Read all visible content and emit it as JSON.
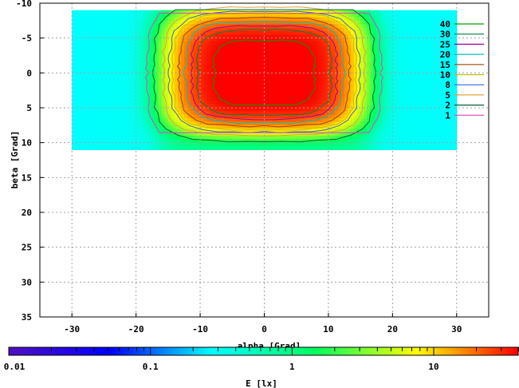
{
  "chart_data": {
    "type": "heatmap",
    "xlabel": "alpha [Grad]",
    "ylabel": "beta [Grad]",
    "xlim": [
      -35,
      35
    ],
    "ylim": [
      -10,
      35
    ],
    "y_inverted": true,
    "x_ticks": [
      -30,
      -20,
      -10,
      0,
      10,
      20,
      30
    ],
    "y_ticks": [
      -10,
      -5,
      0,
      5,
      10,
      15,
      20,
      25,
      30,
      35
    ],
    "grid": true,
    "data_extent": {
      "alpha": [
        -30,
        30
      ],
      "beta": [
        -9,
        11
      ]
    },
    "peak": {
      "alpha": 0,
      "beta": 0,
      "value": 45
    },
    "contour_levels": [
      {
        "value": 40,
        "label": "40",
        "color": "#00a000"
      },
      {
        "value": 30,
        "label": "30",
        "color": "#008040"
      },
      {
        "value": 25,
        "label": "25",
        "color": "#a000a0"
      },
      {
        "value": 20,
        "label": "20",
        "color": "#00c0c0"
      },
      {
        "value": 15,
        "label": "15",
        "color": "#a04000"
      },
      {
        "value": 10,
        "label": "10",
        "color": "#c0c000"
      },
      {
        "value": 8,
        "label": "8",
        "color": "#3060e0"
      },
      {
        "value": 5,
        "label": "5",
        "color": "#e0a040"
      },
      {
        "value": 2,
        "label": "2",
        "color": "#006030"
      },
      {
        "value": 1,
        "label": "1",
        "color": "#e040c0"
      }
    ],
    "legend_position": "top-right",
    "colorbar": {
      "label": "E [lx]",
      "scale": "log",
      "range": [
        0.01,
        40
      ],
      "ticks": [
        {
          "value": 0.01,
          "label": "0.01"
        },
        {
          "value": 0.1,
          "label": "0.1"
        },
        {
          "value": 1,
          "label": "1"
        },
        {
          "value": 10,
          "label": "10"
        }
      ],
      "colors": [
        "#5010c0",
        "#0000ff",
        "#00ffff",
        "#00ff60",
        "#ffff00",
        "#ff0000"
      ]
    }
  }
}
